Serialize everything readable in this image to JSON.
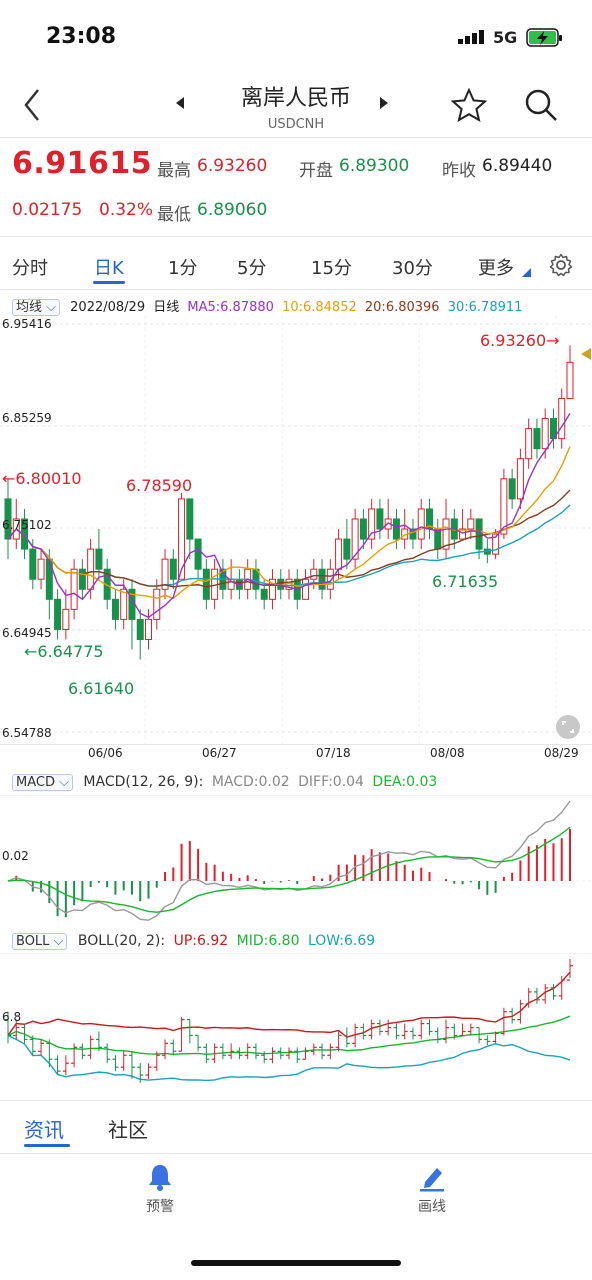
{
  "status_bar": {
    "time": "23:08",
    "network": "5G"
  },
  "header": {
    "title": "离岸人民币",
    "symbol": "USDCNH"
  },
  "quote": {
    "price": "6.91615",
    "high_label": "最高",
    "high": "6.93260",
    "open_label": "开盘",
    "open": "6.89300",
    "prev_close_label": "昨收",
    "prev_close": "6.89440",
    "change": "0.02175",
    "change_pct": "0.32%",
    "low_label": "最低",
    "low": "6.89060"
  },
  "period_tabs": [
    "分时",
    "日K",
    "1分",
    "5分",
    "15分",
    "30分",
    "更多"
  ],
  "active_tab": "日K",
  "ma_bar": {
    "selector": "均线",
    "date": "2022/08/29",
    "period": "日线",
    "ma5": "MA5:6.87880",
    "ma10": "10:6.84852",
    "ma20": "20:6.80396",
    "ma30": "30:6.78911"
  },
  "price_axis": [
    "6.95416",
    "6.85259",
    "6.75102",
    "6.64945",
    "6.54788"
  ],
  "annotations": {
    "high_mark": "6.93260→",
    "left_mark": "←6.80010",
    "peak_mark": "6.78590",
    "low_mark": "←6.64775",
    "low_value": "6.61640",
    "dip_value": "6.71635"
  },
  "date_axis": [
    "06/06",
    "06/27",
    "07/18",
    "08/08",
    "08/29"
  ],
  "macd": {
    "selector": "MACD",
    "params": "MACD(12, 26, 9):",
    "macd": "MACD:0.02",
    "diff": "DIFF:0.04",
    "dea": "DEA:0.03",
    "axis": "0.02"
  },
  "boll": {
    "selector": "BOLL",
    "params": "BOLL(20, 2):",
    "up": "UP:6.92",
    "mid": "MID:6.80",
    "low": "LOW:6.69",
    "axis": "6.8"
  },
  "content_tabs": [
    "资讯",
    "社区"
  ],
  "bottom_nav": {
    "alert": "预警",
    "draw": "画线"
  },
  "colors": {
    "up": "#e0202a",
    "down": "#17924a",
    "accent": "#2764d6"
  },
  "chart_data": {
    "type": "candlestick",
    "x_ticks": [
      "06/06",
      "06/27",
      "07/18",
      "08/08",
      "08/29"
    ],
    "ylim": [
      6.54788,
      6.95416
    ],
    "y_ticks": [
      6.95416,
      6.85259,
      6.75102,
      6.64945,
      6.54788
    ],
    "candles": [
      [
        6.78,
        6.74,
        6.8,
        6.72
      ],
      [
        6.74,
        6.76,
        6.78,
        6.73
      ],
      [
        6.76,
        6.73,
        6.77,
        6.72
      ],
      [
        6.73,
        6.7,
        6.74,
        6.69
      ],
      [
        6.7,
        6.72,
        6.73,
        6.69
      ],
      [
        6.72,
        6.68,
        6.73,
        6.66
      ],
      [
        6.68,
        6.65,
        6.69,
        6.64
      ],
      [
        6.65,
        6.67,
        6.69,
        6.64
      ],
      [
        6.67,
        6.71,
        6.72,
        6.66
      ],
      [
        6.71,
        6.69,
        6.72,
        6.68
      ],
      [
        6.69,
        6.73,
        6.74,
        6.68
      ],
      [
        6.73,
        6.71,
        6.75,
        6.7
      ],
      [
        6.71,
        6.68,
        6.72,
        6.67
      ],
      [
        6.68,
        6.66,
        6.69,
        6.65
      ],
      [
        6.66,
        6.69,
        6.7,
        6.65
      ],
      [
        6.69,
        6.66,
        6.7,
        6.63
      ],
      [
        6.66,
        6.64,
        6.67,
        6.62
      ],
      [
        6.64,
        6.66,
        6.67,
        6.63
      ],
      [
        6.66,
        6.69,
        6.7,
        6.65
      ],
      [
        6.69,
        6.72,
        6.73,
        6.68
      ],
      [
        6.72,
        6.7,
        6.73,
        6.69
      ],
      [
        6.7,
        6.78,
        6.786,
        6.7
      ],
      [
        6.78,
        6.74,
        6.78,
        6.72
      ],
      [
        6.74,
        6.71,
        6.74,
        6.7
      ],
      [
        6.71,
        6.68,
        6.72,
        6.67
      ],
      [
        6.68,
        6.71,
        6.72,
        6.67
      ],
      [
        6.71,
        6.69,
        6.72,
        6.68
      ],
      [
        6.69,
        6.7,
        6.72,
        6.68
      ],
      [
        6.7,
        6.69,
        6.71,
        6.68
      ],
      [
        6.69,
        6.71,
        6.72,
        6.68
      ],
      [
        6.71,
        6.69,
        6.72,
        6.68
      ],
      [
        6.69,
        6.68,
        6.7,
        6.67
      ],
      [
        6.68,
        6.7,
        6.71,
        6.67
      ],
      [
        6.7,
        6.69,
        6.71,
        6.68
      ],
      [
        6.69,
        6.7,
        6.71,
        6.68
      ],
      [
        6.7,
        6.68,
        6.71,
        6.67
      ],
      [
        6.68,
        6.7,
        6.71,
        6.68
      ],
      [
        6.7,
        6.71,
        6.72,
        6.69
      ],
      [
        6.71,
        6.69,
        6.72,
        6.68
      ],
      [
        6.69,
        6.71,
        6.72,
        6.68
      ],
      [
        6.71,
        6.74,
        6.75,
        6.7
      ],
      [
        6.74,
        6.72,
        6.76,
        6.71
      ],
      [
        6.72,
        6.76,
        6.77,
        6.71
      ],
      [
        6.76,
        6.74,
        6.77,
        6.73
      ],
      [
        6.74,
        6.77,
        6.78,
        6.73
      ],
      [
        6.77,
        6.75,
        6.78,
        6.74
      ],
      [
        6.75,
        6.76,
        6.78,
        6.74
      ],
      [
        6.76,
        6.74,
        6.77,
        6.73
      ],
      [
        6.74,
        6.75,
        6.77,
        6.73
      ],
      [
        6.75,
        6.74,
        6.76,
        6.73
      ],
      [
        6.74,
        6.77,
        6.78,
        6.73
      ],
      [
        6.77,
        6.75,
        6.78,
        6.74
      ],
      [
        6.75,
        6.73,
        6.76,
        6.72
      ],
      [
        6.73,
        6.76,
        6.78,
        6.72
      ],
      [
        6.76,
        6.74,
        6.77,
        6.73
      ],
      [
        6.74,
        6.75,
        6.77,
        6.74
      ],
      [
        6.75,
        6.76,
        6.77,
        6.74
      ],
      [
        6.76,
        6.73,
        6.76,
        6.72
      ],
      [
        6.73,
        6.725,
        6.74,
        6.716
      ],
      [
        6.725,
        6.745,
        6.75,
        6.72
      ],
      [
        6.745,
        6.8,
        6.81,
        6.74
      ],
      [
        6.8,
        6.78,
        6.81,
        6.77
      ],
      [
        6.78,
        6.82,
        6.83,
        6.77
      ],
      [
        6.82,
        6.85,
        6.86,
        6.81
      ],
      [
        6.85,
        6.83,
        6.86,
        6.82
      ],
      [
        6.83,
        6.86,
        6.87,
        6.82
      ],
      [
        6.86,
        6.84,
        6.87,
        6.83
      ],
      [
        6.84,
        6.88,
        6.89,
        6.83
      ],
      [
        6.88,
        6.916,
        6.933,
        6.885
      ]
    ]
  }
}
